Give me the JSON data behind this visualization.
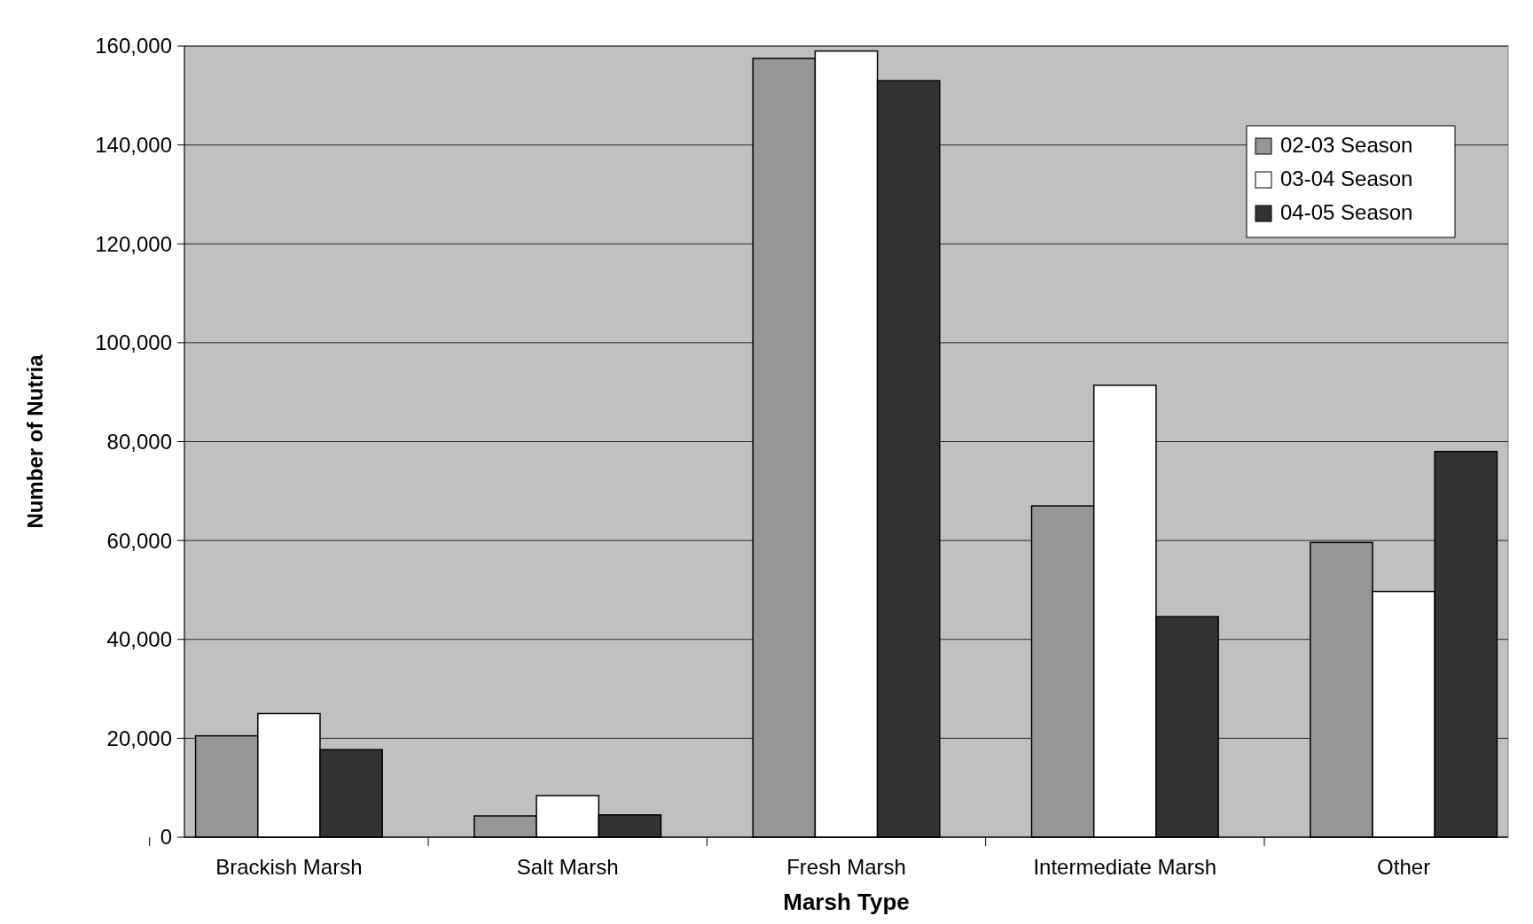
{
  "chart_data": {
    "type": "bar",
    "xlabel": "Marsh Type",
    "ylabel": "Number of Nutria",
    "categories": [
      "Brackish Marsh",
      "Salt Marsh",
      "Fresh Marsh",
      "Intermediate Marsh",
      "Other"
    ],
    "series": [
      {
        "name": "02-03 Season",
        "color": "#969696",
        "values": [
          20500,
          4300,
          157500,
          67000,
          59600
        ]
      },
      {
        "name": "03-04 Season",
        "color": "#ffffff",
        "values": [
          25000,
          8400,
          159000,
          91400,
          49700
        ]
      },
      {
        "name": "04-05 Season",
        "color": "#333333",
        "values": [
          17700,
          4500,
          153000,
          44600,
          78000
        ]
      }
    ],
    "ylim": [
      0,
      160000
    ],
    "yticks": [
      0,
      {
        "value": 20000,
        "label": "20,000"
      },
      {
        "value": 40000,
        "label": "40,000"
      },
      {
        "value": 60000,
        "label": "60,000"
      },
      {
        "value": 80000,
        "label": "80,000"
      },
      {
        "value": 100000,
        "label": "100,000"
      },
      {
        "value": 120000,
        "label": "120,000"
      },
      {
        "value": 140000,
        "label": "140,000"
      },
      {
        "value": 160000,
        "label": "160,000"
      }
    ],
    "grid": "y",
    "legend": "top right"
  }
}
